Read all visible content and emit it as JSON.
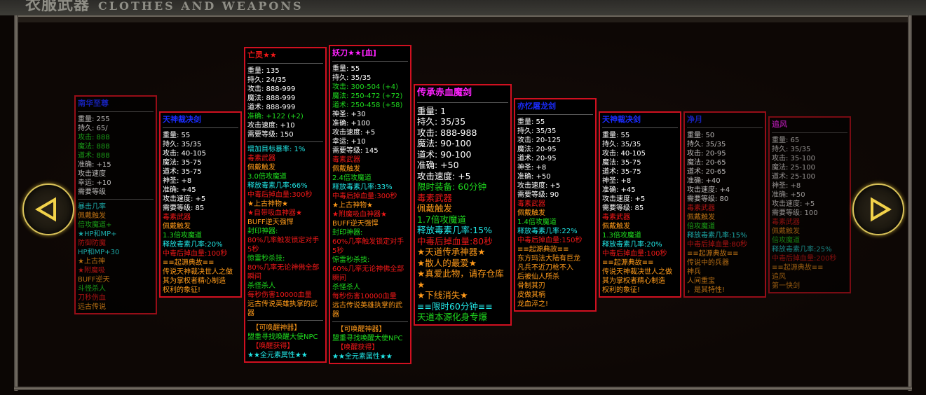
{
  "header": {
    "title_cn": "衣服武器",
    "title_en": "CLOTHES AND WEAPONS"
  },
  "nav": {
    "prev_icon": "triangle-left-icon",
    "next_icon": "triangle-right-icon",
    "accent": "#d9c25a"
  },
  "colors": {
    "w": "#ffffff",
    "g": "#1fdc1f",
    "r": "#f01818",
    "o": "#ff9a1a",
    "c": "#22e8e8",
    "m": "#ff22ff",
    "b": "#1a2cff",
    "border": "#d01020"
  },
  "cards": [
    {
      "title": "南华至尊",
      "title_color": "b",
      "lines": [
        {
          "t": "重量: 255",
          "c": "w"
        },
        {
          "t": "持久: 65/",
          "c": "w"
        },
        {
          "t": "攻击: 888",
          "c": "g"
        },
        {
          "t": "魔法: 888",
          "c": "g"
        },
        {
          "t": "道术: 888",
          "c": "g"
        },
        {
          "t": "准确: +15",
          "c": "w"
        },
        {
          "t": "攻击速度",
          "c": "w"
        },
        {
          "t": "幸运: +10",
          "c": "w"
        },
        {
          "t": "需要等级",
          "c": "w"
        },
        {
          "sep": true
        },
        {
          "t": "暴击几率",
          "c": "c"
        },
        {
          "t": "佩戴触发",
          "c": "o"
        },
        {
          "t": "倍攻魔道+",
          "c": "g"
        },
        {
          "t": "★HP和MP+",
          "c": "c"
        },
        {
          "t": "防御防魔",
          "c": "r"
        },
        {
          "t": "HP和MP+30",
          "c": "c"
        },
        {
          "t": "★上古神",
          "c": "o"
        },
        {
          "t": "★附魔吸",
          "c": "r"
        },
        {
          "t": "BUFF逆天",
          "c": "o"
        },
        {
          "t": "斗怪杀人",
          "c": "g"
        },
        {
          "t": "刀秒伤血",
          "c": "r"
        },
        {
          "t": "远古传说",
          "c": "o"
        }
      ]
    },
    {
      "title": "天神裁决剑",
      "title_color": "b",
      "lines": [
        {
          "t": "重量: 55",
          "c": "w"
        },
        {
          "t": "持久: 35/35",
          "c": "w"
        },
        {
          "t": "攻击: 40-105",
          "c": "w"
        },
        {
          "t": "魔法: 35-75",
          "c": "w"
        },
        {
          "t": "道术: 35-75",
          "c": "w"
        },
        {
          "t": "神圣: +8",
          "c": "w"
        },
        {
          "t": "准确: +45",
          "c": "w"
        },
        {
          "t": "攻击速度: +5",
          "c": "w"
        },
        {
          "t": "需要等级: 85",
          "c": "w"
        },
        {
          "t": "毒素武器",
          "c": "r"
        },
        {
          "t": "佩戴触发",
          "c": "o"
        },
        {
          "t": "1.3倍攻魔道",
          "c": "g"
        },
        {
          "t": "释放毒素几率:20%",
          "c": "c"
        },
        {
          "t": "中毒后掉血量:100秒",
          "c": "r"
        },
        {
          "t": "≡≡起源典故≡≡",
          "c": "o"
        },
        {
          "t": "传说天神裁决世人之做",
          "c": "o"
        },
        {
          "t": "其为掌权者精心制造",
          "c": "o"
        },
        {
          "t": "权利的象征!",
          "c": "o"
        }
      ]
    },
    {
      "title": "亡灵★★",
      "title_color": "r",
      "lines": [
        {
          "t": "重量: 135",
          "c": "w"
        },
        {
          "t": "持久: 24/35",
          "c": "w"
        },
        {
          "t": "攻击: 888-999",
          "c": "w"
        },
        {
          "t": "魔法: 888-999",
          "c": "w"
        },
        {
          "t": "道术: 888-999",
          "c": "w"
        },
        {
          "t": "准确: +122 (+2)",
          "c": "g"
        },
        {
          "t": "攻击速度: +10",
          "c": "w"
        },
        {
          "t": "需要等级: 150",
          "c": "w"
        },
        {
          "sep": true
        },
        {
          "t": "增加目标暴率: 1%",
          "c": "c"
        },
        {
          "t": "毒素武器",
          "c": "r"
        },
        {
          "t": "佩戴触发",
          "c": "o"
        },
        {
          "t": "3.0倍攻魔道",
          "c": "g"
        },
        {
          "t": "释放毒素几率:66%",
          "c": "c"
        },
        {
          "t": "中毒后掉血量:300秒",
          "c": "r"
        },
        {
          "t": "★上古神物★",
          "c": "o"
        },
        {
          "t": "★自带吸血神器★",
          "c": "r"
        },
        {
          "t": "BUFF逆天强悍",
          "c": "o"
        },
        {
          "t": "封印神器:",
          "c": "g"
        },
        {
          "t": "80%几率触发锁定对手5秒",
          "c": "r"
        },
        {
          "t": "惊雷秒杀技:",
          "c": "g"
        },
        {
          "t": "80%几率无论神佛全部瞬间",
          "c": "r"
        },
        {
          "t": "杀怪杀人",
          "c": "g"
        },
        {
          "t": "每秒伤害10000血量",
          "c": "r"
        },
        {
          "t": "远古传说英雄执掌的武器",
          "c": "o"
        },
        {
          "sep": true
        },
        {
          "t": "  【可唤醒神器】",
          "c": "o"
        },
        {
          "t": "盟重寻找唤醒大使NPC",
          "c": "g"
        },
        {
          "t": "  【唤醒获得】",
          "c": "r"
        },
        {
          "t": "★★全元素属性★★",
          "c": "c"
        }
      ]
    },
    {
      "title": "妖刀★★[血]",
      "title_color": "m",
      "lines": [
        {
          "t": "重量: 55",
          "c": "w"
        },
        {
          "t": "持久: 35/35",
          "c": "w"
        },
        {
          "t": "攻击: 300-504 (+4)",
          "c": "g"
        },
        {
          "t": "魔法: 250-472 (+72)",
          "c": "g"
        },
        {
          "t": "道术: 250-458 (+58)",
          "c": "g"
        },
        {
          "t": "神圣: +30",
          "c": "w"
        },
        {
          "t": "准确: +100",
          "c": "w"
        },
        {
          "t": "攻击速度: +5",
          "c": "w"
        },
        {
          "t": "幸运: +10",
          "c": "w"
        },
        {
          "t": "需要等级: 145",
          "c": "w"
        },
        {
          "t": "毒素武器",
          "c": "r"
        },
        {
          "t": "佩戴触发",
          "c": "o"
        },
        {
          "t": "2.4倍攻魔道",
          "c": "g"
        },
        {
          "t": "释放毒素几率:33%",
          "c": "c"
        },
        {
          "t": "中毒后掉血量:300秒",
          "c": "r"
        },
        {
          "t": "★上古神物★",
          "c": "o"
        },
        {
          "t": "★附魔吸血神器★",
          "c": "r"
        },
        {
          "t": "BUFF逆天强悍",
          "c": "o"
        },
        {
          "t": "封印神器:",
          "c": "g"
        },
        {
          "t": "60%几率触发锁定对手5秒",
          "c": "r"
        },
        {
          "t": "惊雷秒杀技:",
          "c": "g"
        },
        {
          "t": "60%几率无论神佛全部瞬间",
          "c": "r"
        },
        {
          "t": "杀怪杀人",
          "c": "g"
        },
        {
          "t": "每秒伤害10000血量",
          "c": "r"
        },
        {
          "t": "远古传说英雄执掌的武器",
          "c": "o"
        },
        {
          "sep": true
        },
        {
          "t": "  【可唤醒神器】",
          "c": "o"
        },
        {
          "t": "盟重寻找唤醒大使NPC",
          "c": "g"
        },
        {
          "t": "  【唤醒获得】",
          "c": "r"
        },
        {
          "t": "★★全元素属性★★",
          "c": "c"
        }
      ]
    },
    {
      "title": "传承赤血魔剑",
      "title_color": "m",
      "lines": [
        {
          "t": "重量: 1",
          "c": "w"
        },
        {
          "t": "持久: 35/35",
          "c": "w"
        },
        {
          "t": "攻击: 888-988",
          "c": "w"
        },
        {
          "t": "魔法: 90-100",
          "c": "w"
        },
        {
          "t": "道术: 90-100",
          "c": "w"
        },
        {
          "t": "准确: +50",
          "c": "w"
        },
        {
          "t": "攻击速度: +5",
          "c": "w"
        },
        {
          "t": "限时装备: 60分钟",
          "c": "g"
        },
        {
          "t": "毒素武器",
          "c": "r"
        },
        {
          "t": "佩戴触发",
          "c": "o"
        },
        {
          "t": "1.7倍攻魔道",
          "c": "g"
        },
        {
          "t": "释放毒素几率:15%",
          "c": "c"
        },
        {
          "t": "中毒后掉血量:80秒",
          "c": "r"
        },
        {
          "t": "★天道传承神器★",
          "c": "o"
        },
        {
          "t": "★散人的最爱★",
          "c": "o"
        },
        {
          "t": "★真爱此物，请存仓库★",
          "c": "o"
        },
        {
          "t": "★下线消失★",
          "c": "o"
        },
        {
          "t": "≡≡限时60分钟≡≡",
          "c": "c"
        },
        {
          "t": "天道本源化身专爆",
          "c": "g"
        }
      ]
    },
    {
      "title": "亦忆屠龙剑",
      "title_color": "b",
      "lines": [
        {
          "t": "重量: 55",
          "c": "w"
        },
        {
          "t": "持久: 35/35",
          "c": "w"
        },
        {
          "t": "攻击: 20-125",
          "c": "w"
        },
        {
          "t": "魔法: 20-95",
          "c": "w"
        },
        {
          "t": "道术: 20-95",
          "c": "w"
        },
        {
          "t": "神圣: +8",
          "c": "w"
        },
        {
          "t": "准确: +50",
          "c": "w"
        },
        {
          "t": "攻击速度: +5",
          "c": "w"
        },
        {
          "t": "需要等级: 90",
          "c": "w"
        },
        {
          "t": "毒素武器",
          "c": "r"
        },
        {
          "t": "佩戴触发",
          "c": "o"
        },
        {
          "t": "1.4倍攻魔道",
          "c": "g"
        },
        {
          "t": "释放毒素几率:22%",
          "c": "c"
        },
        {
          "t": "中毒后掉血量:150秒",
          "c": "r"
        },
        {
          "t": "≡≡起源典故≡≡",
          "c": "o"
        },
        {
          "t": "东方玛法大陆有巨龙",
          "c": "o"
        },
        {
          "t": "凡兵不近刀枪不入",
          "c": "o"
        },
        {
          "t": "后被仙人所杀",
          "c": "o"
        },
        {
          "t": "骨制其刃",
          "c": "o"
        },
        {
          "t": "皮做其柄",
          "c": "o"
        },
        {
          "t": "龙血淬之!",
          "c": "o"
        }
      ]
    },
    {
      "title": "天神裁决剑",
      "title_color": "b",
      "lines": [
        {
          "t": "重量: 55",
          "c": "w"
        },
        {
          "t": "持久: 35/35",
          "c": "w"
        },
        {
          "t": "攻击: 40-105",
          "c": "w"
        },
        {
          "t": "魔法: 35-75",
          "c": "w"
        },
        {
          "t": "道术: 35-75",
          "c": "w"
        },
        {
          "t": "神圣: +8",
          "c": "w"
        },
        {
          "t": "准确: +45",
          "c": "w"
        },
        {
          "t": "攻击速度: +5",
          "c": "w"
        },
        {
          "t": "需要等级: 85",
          "c": "w"
        },
        {
          "t": "毒素武器",
          "c": "r"
        },
        {
          "t": "佩戴触发",
          "c": "o"
        },
        {
          "t": "1.3倍攻魔道",
          "c": "g"
        },
        {
          "t": "释放毒素几率:20%",
          "c": "c"
        },
        {
          "t": "中毒后掉血量:100秒",
          "c": "r"
        },
        {
          "t": "≡≡起源典故≡≡",
          "c": "o"
        },
        {
          "t": "传说天神裁决世人之做",
          "c": "o"
        },
        {
          "t": "其为掌权者精心制造",
          "c": "o"
        },
        {
          "t": "权利的象征!",
          "c": "o"
        }
      ]
    },
    {
      "title": "净月",
      "title_color": "b",
      "lines": [
        {
          "t": "重量: 50",
          "c": "w"
        },
        {
          "t": "持久: 35/35",
          "c": "w"
        },
        {
          "t": "攻击: 20-95",
          "c": "w"
        },
        {
          "t": "魔法: 20-65",
          "c": "w"
        },
        {
          "t": "道术: 20-65",
          "c": "w"
        },
        {
          "t": "准确: +40",
          "c": "w"
        },
        {
          "t": "攻击速度: +4",
          "c": "w"
        },
        {
          "t": "需要等级: 80",
          "c": "w"
        },
        {
          "t": "毒素武器",
          "c": "r"
        },
        {
          "t": "佩戴触发",
          "c": "o"
        },
        {
          "t": "倍攻魔道",
          "c": "g"
        },
        {
          "t": "释放毒素几率:15%",
          "c": "c"
        },
        {
          "t": "中毒后掉血量:80秒",
          "c": "r"
        },
        {
          "t": "≡≡起源典故≡≡",
          "c": "o"
        },
        {
          "t": "传说中的兵器",
          "c": "o"
        },
        {
          "t": "神兵",
          "c": "o"
        },
        {
          "t": "人间重宝",
          "c": "o"
        },
        {
          "t": "，是其特性!",
          "c": "o"
        }
      ]
    },
    {
      "title": "追风",
      "title_color": "m",
      "lines": [
        {
          "t": "重量: 65",
          "c": "w"
        },
        {
          "t": "持久: 35/35",
          "c": "w"
        },
        {
          "t": "攻击: 35-100",
          "c": "w"
        },
        {
          "t": "魔法: 25-100",
          "c": "w"
        },
        {
          "t": "道术: 25-100",
          "c": "w"
        },
        {
          "t": "神圣: +8",
          "c": "w"
        },
        {
          "t": "准确: +50",
          "c": "w"
        },
        {
          "t": "攻击速度: +5",
          "c": "w"
        },
        {
          "t": "需要等级: 100",
          "c": "w"
        },
        {
          "t": "毒素武器",
          "c": "r"
        },
        {
          "t": "佩戴触发",
          "c": "o"
        },
        {
          "t": "倍攻魔道",
          "c": "g"
        },
        {
          "t": "释放毒素几率:25%",
          "c": "c"
        },
        {
          "t": "中毒后掉血量:200秒",
          "c": "r"
        },
        {
          "t": "≡≡起源典故≡≡",
          "c": "o"
        },
        {
          "t": "追风",
          "c": "o"
        },
        {
          "t": "第一快剑",
          "c": "o"
        }
      ]
    }
  ]
}
